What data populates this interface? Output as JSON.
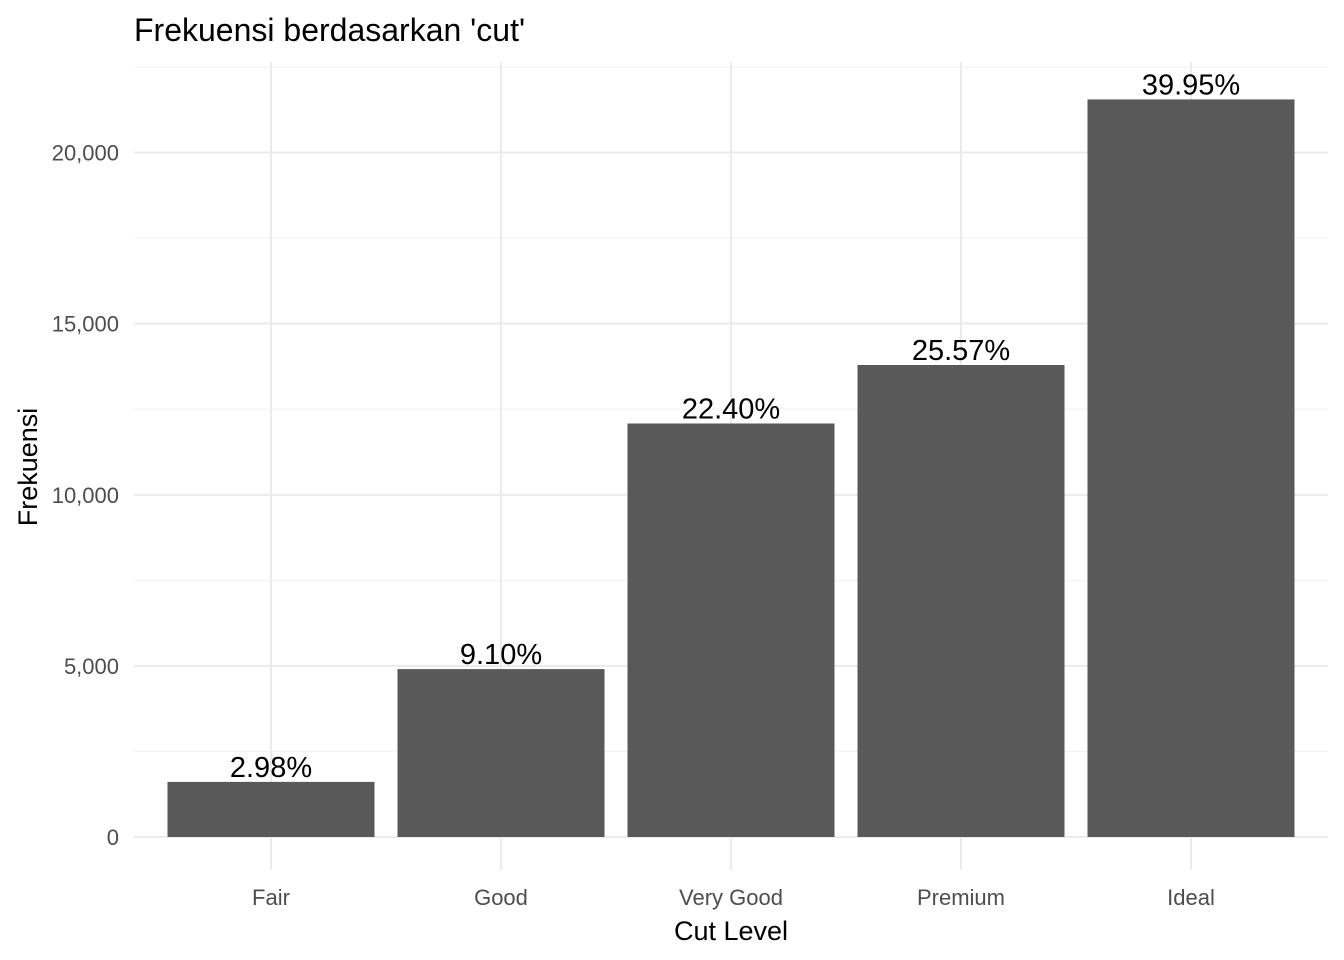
{
  "chart_data": {
    "type": "bar",
    "title": "Frekuensi berdasarkan 'cut'",
    "xlabel": "Cut Level",
    "ylabel": "Frekuensi",
    "categories": [
      "Fair",
      "Good",
      "Very Good",
      "Premium",
      "Ideal"
    ],
    "values": [
      1610,
      4906,
      12082,
      13791,
      21551
    ],
    "data_labels": [
      "2.98%",
      "9.10%",
      "22.40%",
      "25.57%",
      "39.95%"
    ],
    "ylim": [
      0,
      22600
    ],
    "yticks": [
      0,
      5000,
      10000,
      15000,
      20000
    ],
    "ytick_labels": [
      "0",
      "5,000",
      "10,000",
      "15,000",
      "20,000"
    ],
    "grid": true,
    "bar_color": "#595959"
  }
}
